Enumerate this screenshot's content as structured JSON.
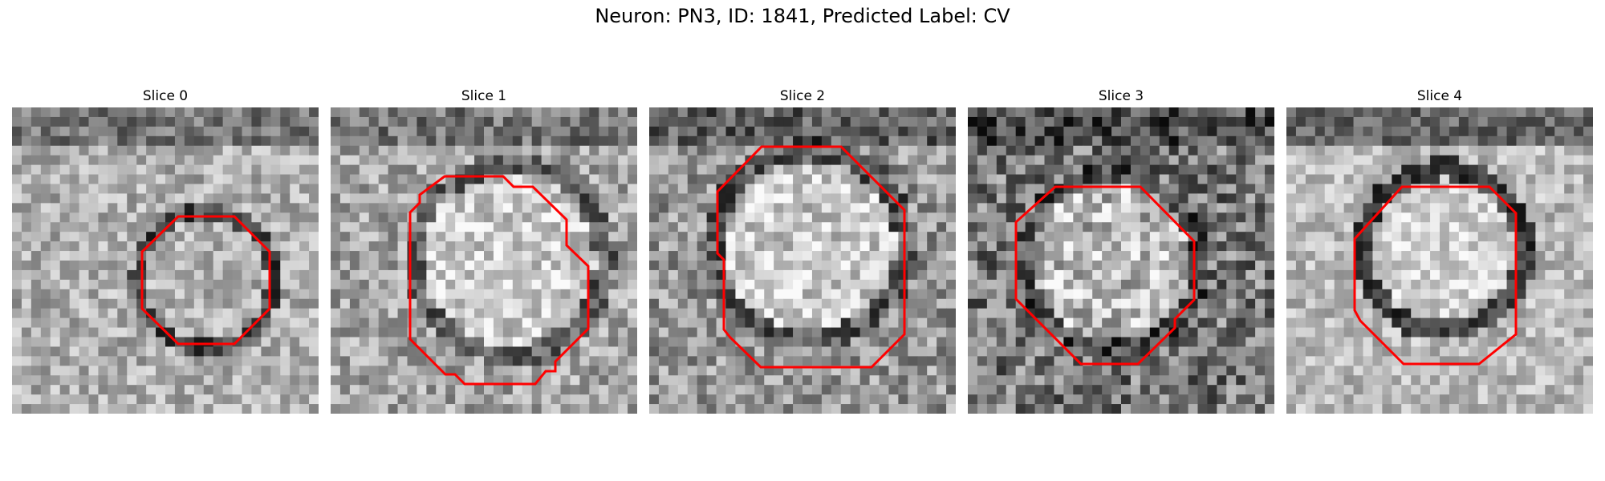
{
  "figure": {
    "title": "Neuron: PN3, ID: 1841, Predicted Label: CV",
    "contour_color": "#ff0000",
    "colormap": "gray"
  },
  "panels": [
    {
      "title": "Slice 0"
    },
    {
      "title": "Slice 1"
    },
    {
      "title": "Slice 2"
    },
    {
      "title": "Slice 3"
    },
    {
      "title": "Slice 4"
    }
  ]
}
